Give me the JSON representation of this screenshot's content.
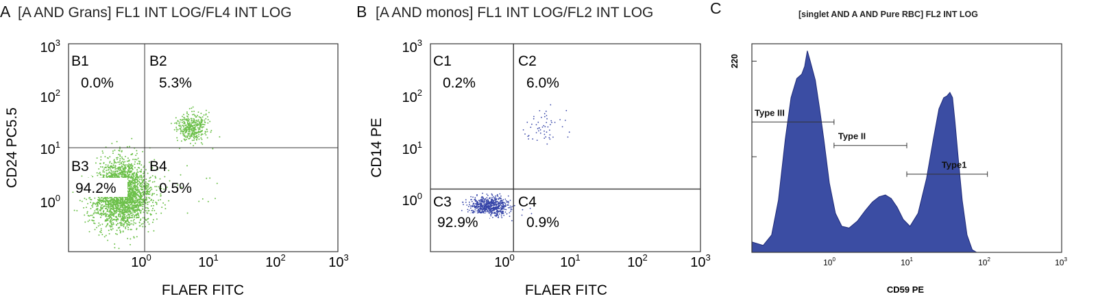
{
  "chart_data": [
    {
      "type": "scatter",
      "panel_letter": "A",
      "title": "[A AND Grans] FL1 INT LOG/FL4 INT LOG",
      "xlabel": "FLAER FITC",
      "ylabel": "CD24 PC5.5",
      "scale": "log",
      "xlim": [
        0.1,
        1000
      ],
      "ylim": [
        0.1,
        1000
      ],
      "x_ticks": [
        {
          "base": "10",
          "exp": "0"
        },
        {
          "base": "10",
          "exp": "1"
        },
        {
          "base": "10",
          "exp": "2"
        },
        {
          "base": "10",
          "exp": "3"
        }
      ],
      "y_ticks": [
        {
          "base": "10",
          "exp": "0"
        },
        {
          "base": "10",
          "exp": "1"
        },
        {
          "base": "10",
          "exp": "2"
        },
        {
          "base": "10",
          "exp": "3"
        }
      ],
      "gate": {
        "x": 1.35,
        "y": 10
      },
      "point_color": "#6cc04a",
      "quadrants": [
        {
          "name": "B1",
          "percent": "0.0%"
        },
        {
          "name": "B2",
          "percent": "5.3%"
        },
        {
          "name": "B3",
          "percent": "94.2%"
        },
        {
          "name": "B4",
          "percent": "0.5%"
        }
      ],
      "series": [
        {
          "cluster": "B3",
          "center": [
            0.62,
            1.3
          ],
          "spread": [
            0.22,
            0.32
          ],
          "count": 2600
        },
        {
          "cluster": "B2",
          "center": [
            6.8,
            25
          ],
          "spread": [
            0.11,
            0.14
          ],
          "count": 380
        },
        {
          "cluster": "B4",
          "center": [
            5,
            1.2
          ],
          "spread": [
            0.35,
            0.3
          ],
          "count": 14
        }
      ]
    },
    {
      "type": "scatter",
      "panel_letter": "B",
      "title": "[A AND monos] FL1 INT LOG/FL2 INT LOG",
      "xlabel": "FLAER FITC",
      "ylabel": "CD14 PE",
      "scale": "log",
      "xlim": [
        0.1,
        1000
      ],
      "ylim": [
        0.1,
        1000
      ],
      "x_ticks": [
        {
          "base": "10",
          "exp": "0"
        },
        {
          "base": "10",
          "exp": "1"
        },
        {
          "base": "10",
          "exp": "2"
        },
        {
          "base": "10",
          "exp": "3"
        }
      ],
      "y_ticks": [
        {
          "base": "10",
          "exp": "0"
        },
        {
          "base": "10",
          "exp": "1"
        },
        {
          "base": "10",
          "exp": "2"
        },
        {
          "base": "10",
          "exp": "3"
        }
      ],
      "gate": {
        "x": 1.7,
        "y": 1.6
      },
      "point_color": "#3645a8",
      "quadrants": [
        {
          "name": "C1",
          "percent": "0.2%"
        },
        {
          "name": "C2",
          "percent": "6.0%"
        },
        {
          "name": "C3",
          "percent": "92.9%"
        },
        {
          "name": "C4",
          "percent": "0.9%"
        }
      ],
      "series": [
        {
          "cluster": "C3",
          "center": [
            0.75,
            0.75
          ],
          "spread": [
            0.14,
            0.09
          ],
          "count": 700
        },
        {
          "cluster": "C2",
          "center": [
            5,
            28
          ],
          "spread": [
            0.14,
            0.16
          ],
          "count": 55
        },
        {
          "cluster": "C4",
          "center": [
            2.5,
            0.6
          ],
          "spread": [
            0.12,
            0.1
          ],
          "count": 6
        }
      ]
    },
    {
      "type": "area",
      "panel_letter": "C",
      "title": "[singlet AND A AND Pure RBC] FL2 INT LOG",
      "xlabel": "CD59 PE",
      "ylabel": "",
      "x_scale": "log",
      "xlim": [
        0.1,
        1000
      ],
      "ylim": [
        0,
        240
      ],
      "x_ticks": [
        {
          "base": "10",
          "exp": "0"
        },
        {
          "base": "10",
          "exp": "1"
        },
        {
          "base": "10",
          "exp": "2"
        },
        {
          "base": "10",
          "exp": "3"
        }
      ],
      "y_tick_label": "220",
      "y_tick_value": 220,
      "y_minor_tick_value": 110,
      "fill_color": "#3b4da3",
      "gates": [
        {
          "name": "Type III",
          "from": 0.1,
          "to": 1.15,
          "level": 150
        },
        {
          "name": "Type II",
          "from": 1.15,
          "to": 10,
          "level": 123
        },
        {
          "name": "Type1",
          "from": 10,
          "to": 110,
          "level": 90
        }
      ],
      "series": [
        {
          "name": "CD59",
          "x": [
            0.1,
            0.14,
            0.18,
            0.22,
            0.27,
            0.32,
            0.38,
            0.44,
            0.48,
            0.52,
            0.56,
            0.6,
            0.66,
            0.75,
            0.85,
            1.0,
            1.2,
            1.45,
            1.8,
            2.3,
            2.9,
            3.6,
            4.4,
            5.3,
            6.3,
            7.5,
            9.0,
            11,
            14,
            18,
            22,
            26,
            30,
            33,
            36,
            39,
            42,
            46,
            52,
            60,
            70,
            80,
            95
          ],
          "y": [
            12,
            8,
            20,
            60,
            130,
            178,
            200,
            205,
            214,
            232,
            222,
            212,
            198,
            165,
            130,
            80,
            45,
            30,
            28,
            36,
            48,
            58,
            64,
            66,
            62,
            52,
            38,
            30,
            45,
            85,
            130,
            165,
            178,
            180,
            184,
            178,
            150,
            110,
            60,
            20,
            3,
            0,
            0
          ]
        }
      ]
    }
  ]
}
